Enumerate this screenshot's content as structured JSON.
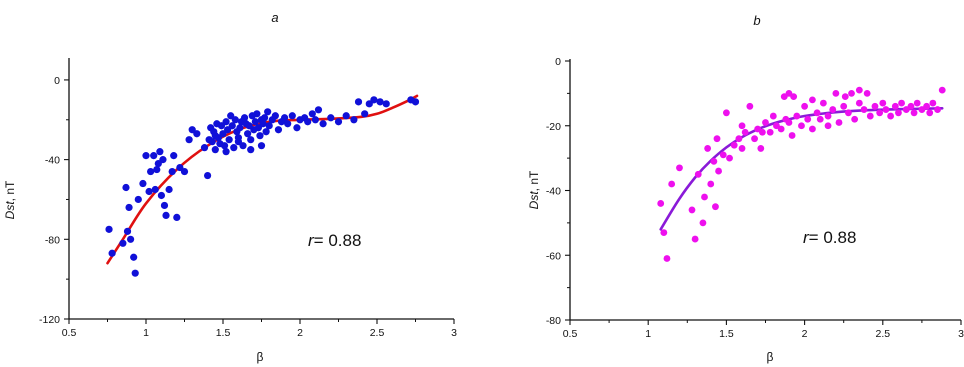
{
  "chart_data": [
    {
      "type": "scatter",
      "panel_label": "a",
      "xlabel": "β",
      "ylabel": "Dst, nT",
      "ylabel_italic": "Dst",
      "ylabel_unit": ", nT",
      "annotation": "r= 0.88",
      "annotation_r": "r",
      "annotation_value": "= 0.88",
      "xlim": [
        0.5,
        3
      ],
      "ylim": [
        -120,
        10
      ],
      "x_ticks": [
        0.5,
        1,
        1.5,
        2,
        2.5,
        3
      ],
      "x_tick_labels": [
        "0.5",
        "1",
        "1.5",
        "2",
        "2.5",
        "3"
      ],
      "y_ticks": [
        -120,
        -80,
        -40,
        0
      ],
      "y_tick_labels": [
        "-120",
        "-80",
        "-40",
        "0"
      ],
      "grid": false,
      "point_color": "#1010d8",
      "fit_color": "#e01010",
      "points": [
        [
          0.76,
          -75
        ],
        [
          0.78,
          -87
        ],
        [
          0.85,
          -82
        ],
        [
          0.87,
          -54
        ],
        [
          0.88,
          -76
        ],
        [
          0.89,
          -64
        ],
        [
          0.9,
          -80
        ],
        [
          0.92,
          -89
        ],
        [
          0.93,
          -97
        ],
        [
          0.95,
          -60
        ],
        [
          0.98,
          -52
        ],
        [
          1.0,
          -38
        ],
        [
          1.02,
          -56
        ],
        [
          1.03,
          -46
        ],
        [
          1.05,
          -38
        ],
        [
          1.06,
          -55
        ],
        [
          1.07,
          -45
        ],
        [
          1.08,
          -42
        ],
        [
          1.09,
          -36
        ],
        [
          1.1,
          -58
        ],
        [
          1.11,
          -40
        ],
        [
          1.12,
          -63
        ],
        [
          1.13,
          -68
        ],
        [
          1.15,
          -55
        ],
        [
          1.17,
          -46
        ],
        [
          1.18,
          -38
        ],
        [
          1.2,
          -69
        ],
        [
          1.22,
          -44
        ],
        [
          1.25,
          -46
        ],
        [
          1.28,
          -30
        ],
        [
          1.33,
          -27
        ],
        [
          1.38,
          -34
        ],
        [
          1.4,
          -48
        ],
        [
          1.41,
          -30
        ],
        [
          1.42,
          -24
        ],
        [
          1.43,
          -31
        ],
        [
          1.44,
          -26
        ],
        [
          1.45,
          -35
        ],
        [
          1.46,
          -22
        ],
        [
          1.47,
          -29
        ],
        [
          1.48,
          -32
        ],
        [
          1.49,
          -23
        ],
        [
          1.5,
          -27
        ],
        [
          1.51,
          -33
        ],
        [
          1.52,
          -21
        ],
        [
          1.53,
          -25
        ],
        [
          1.54,
          -30
        ],
        [
          1.55,
          -18
        ],
        [
          1.56,
          -23
        ],
        [
          1.57,
          -34
        ],
        [
          1.58,
          -20
        ],
        [
          1.59,
          -26
        ],
        [
          1.6,
          -29
        ],
        [
          1.61,
          -24
        ],
        [
          1.62,
          -21
        ],
        [
          1.63,
          -33
        ],
        [
          1.64,
          -19
        ],
        [
          1.65,
          -22
        ],
        [
          1.66,
          -27
        ],
        [
          1.67,
          -23
        ],
        [
          1.68,
          -30
        ],
        [
          1.69,
          -18
        ],
        [
          1.7,
          -25
        ],
        [
          1.71,
          -21
        ],
        [
          1.72,
          -17
        ],
        [
          1.73,
          -24
        ],
        [
          1.74,
          -28
        ],
        [
          1.75,
          -20
        ],
        [
          1.76,
          -22
        ],
        [
          1.77,
          -19
        ],
        [
          1.78,
          -26
        ],
        [
          1.79,
          -16
        ],
        [
          1.8,
          -23
        ],
        [
          1.82,
          -20
        ],
        [
          1.84,
          -18
        ],
        [
          1.86,
          -25
        ],
        [
          1.88,
          -21
        ],
        [
          1.9,
          -19
        ],
        [
          1.92,
          -22
        ],
        [
          1.95,
          -18
        ],
        [
          1.98,
          -24
        ],
        [
          2.0,
          -20
        ],
        [
          2.03,
          -19
        ],
        [
          2.05,
          -21
        ],
        [
          2.08,
          -17
        ],
        [
          2.1,
          -20
        ],
        [
          2.12,
          -15
        ],
        [
          2.15,
          -22
        ],
        [
          2.2,
          -19
        ],
        [
          2.25,
          -21
        ],
        [
          2.3,
          -18
        ],
        [
          2.35,
          -20
        ],
        [
          2.38,
          -11
        ],
        [
          2.42,
          -17
        ],
        [
          2.45,
          -12
        ],
        [
          2.48,
          -10
        ],
        [
          2.52,
          -11
        ],
        [
          2.56,
          -12
        ],
        [
          2.72,
          -10
        ],
        [
          2.75,
          -11
        ],
        [
          1.3,
          -25
        ],
        [
          1.52,
          -36
        ],
        [
          1.68,
          -35
        ],
        [
          1.75,
          -33
        ],
        [
          1.45,
          -28
        ],
        [
          1.6,
          -31
        ]
      ],
      "fit_curve": [
        [
          0.75,
          -92
        ],
        [
          0.85,
          -80
        ],
        [
          1.0,
          -62
        ],
        [
          1.2,
          -45
        ],
        [
          1.4,
          -33
        ],
        [
          1.6,
          -25
        ],
        [
          1.8,
          -21
        ],
        [
          2.0,
          -20
        ],
        [
          2.2,
          -19.5
        ],
        [
          2.4,
          -18.5
        ],
        [
          2.5,
          -17
        ],
        [
          2.6,
          -14
        ],
        [
          2.7,
          -10.5
        ],
        [
          2.76,
          -8
        ]
      ]
    },
    {
      "type": "scatter",
      "panel_label": "b",
      "xlabel": "β",
      "ylabel": "Dst, nT",
      "ylabel_italic": "Dst",
      "ylabel_unit": ", nT",
      "annotation": "r= 0.88",
      "annotation_r": "r",
      "annotation_value": "= 0.88",
      "xlim": [
        0.5,
        3
      ],
      "ylim": [
        -80,
        0
      ],
      "x_ticks": [
        0.5,
        1,
        1.5,
        2,
        2.5,
        3
      ],
      "x_tick_labels": [
        "0.5",
        "1",
        "1.5",
        "2",
        "2.5",
        "3"
      ],
      "y_ticks": [
        -80,
        -60,
        -40,
        -20,
        0
      ],
      "y_tick_labels": [
        "-80",
        "-60",
        "-40",
        "-20",
        "0"
      ],
      "grid": false,
      "point_color": "#ee10ee",
      "fit_color": "#8a1ad8",
      "points": [
        [
          1.08,
          -44
        ],
        [
          1.1,
          -53
        ],
        [
          1.12,
          -61
        ],
        [
          1.15,
          -38
        ],
        [
          1.2,
          -33
        ],
        [
          1.28,
          -46
        ],
        [
          1.3,
          -55
        ],
        [
          1.32,
          -35
        ],
        [
          1.35,
          -50
        ],
        [
          1.36,
          -42
        ],
        [
          1.38,
          -27
        ],
        [
          1.4,
          -38
        ],
        [
          1.42,
          -31
        ],
        [
          1.43,
          -45
        ],
        [
          1.44,
          -24
        ],
        [
          1.45,
          -34
        ],
        [
          1.48,
          -29
        ],
        [
          1.5,
          -16
        ],
        [
          1.52,
          -30
        ],
        [
          1.55,
          -26
        ],
        [
          1.58,
          -24
        ],
        [
          1.6,
          -27
        ],
        [
          1.62,
          -22
        ],
        [
          1.65,
          -14
        ],
        [
          1.68,
          -24
        ],
        [
          1.7,
          -21
        ],
        [
          1.72,
          -27
        ],
        [
          1.75,
          -19
        ],
        [
          1.78,
          -22
        ],
        [
          1.8,
          -17
        ],
        [
          1.82,
          -20
        ],
        [
          1.85,
          -21
        ],
        [
          1.87,
          -11
        ],
        [
          1.88,
          -18
        ],
        [
          1.9,
          -10
        ],
        [
          1.92,
          -23
        ],
        [
          1.95,
          -17
        ],
        [
          1.98,
          -20
        ],
        [
          2.0,
          -14
        ],
        [
          2.02,
          -18
        ],
        [
          2.05,
          -21
        ],
        [
          2.08,
          -16
        ],
        [
          2.1,
          -18
        ],
        [
          2.12,
          -13
        ],
        [
          2.15,
          -17
        ],
        [
          2.18,
          -15
        ],
        [
          2.2,
          -10
        ],
        [
          2.22,
          -19
        ],
        [
          2.25,
          -14
        ],
        [
          2.28,
          -16
        ],
        [
          2.3,
          -10
        ],
        [
          2.32,
          -18
        ],
        [
          2.35,
          -13
        ],
        [
          2.38,
          -15
        ],
        [
          2.4,
          -10
        ],
        [
          2.42,
          -17
        ],
        [
          2.45,
          -14
        ],
        [
          2.48,
          -16
        ],
        [
          2.5,
          -13
        ],
        [
          2.52,
          -15
        ],
        [
          2.55,
          -17
        ],
        [
          2.58,
          -14
        ],
        [
          2.6,
          -16
        ],
        [
          2.62,
          -13
        ],
        [
          2.65,
          -15
        ],
        [
          2.68,
          -14
        ],
        [
          2.7,
          -16
        ],
        [
          2.72,
          -13
        ],
        [
          2.75,
          -15
        ],
        [
          2.78,
          -14
        ],
        [
          2.8,
          -16
        ],
        [
          2.82,
          -13
        ],
        [
          2.85,
          -15
        ],
        [
          2.88,
          -9
        ],
        [
          1.93,
          -11
        ],
        [
          2.26,
          -11
        ],
        [
          2.35,
          -9
        ],
        [
          2.05,
          -12
        ],
        [
          2.15,
          -20
        ],
        [
          1.73,
          -22
        ],
        [
          1.6,
          -20
        ],
        [
          1.9,
          -19
        ]
      ],
      "fit_curve": [
        [
          1.08,
          -52
        ],
        [
          1.2,
          -42.5
        ],
        [
          1.3,
          -36
        ],
        [
          1.4,
          -30.8
        ],
        [
          1.5,
          -26.7
        ],
        [
          1.6,
          -23.5
        ],
        [
          1.7,
          -21.1
        ],
        [
          1.8,
          -19.3
        ],
        [
          1.9,
          -18
        ],
        [
          2.0,
          -17
        ],
        [
          2.2,
          -15.8
        ],
        [
          2.4,
          -15.2
        ],
        [
          2.6,
          -14.9
        ],
        [
          2.8,
          -14.7
        ],
        [
          2.88,
          -14.6
        ]
      ]
    }
  ]
}
